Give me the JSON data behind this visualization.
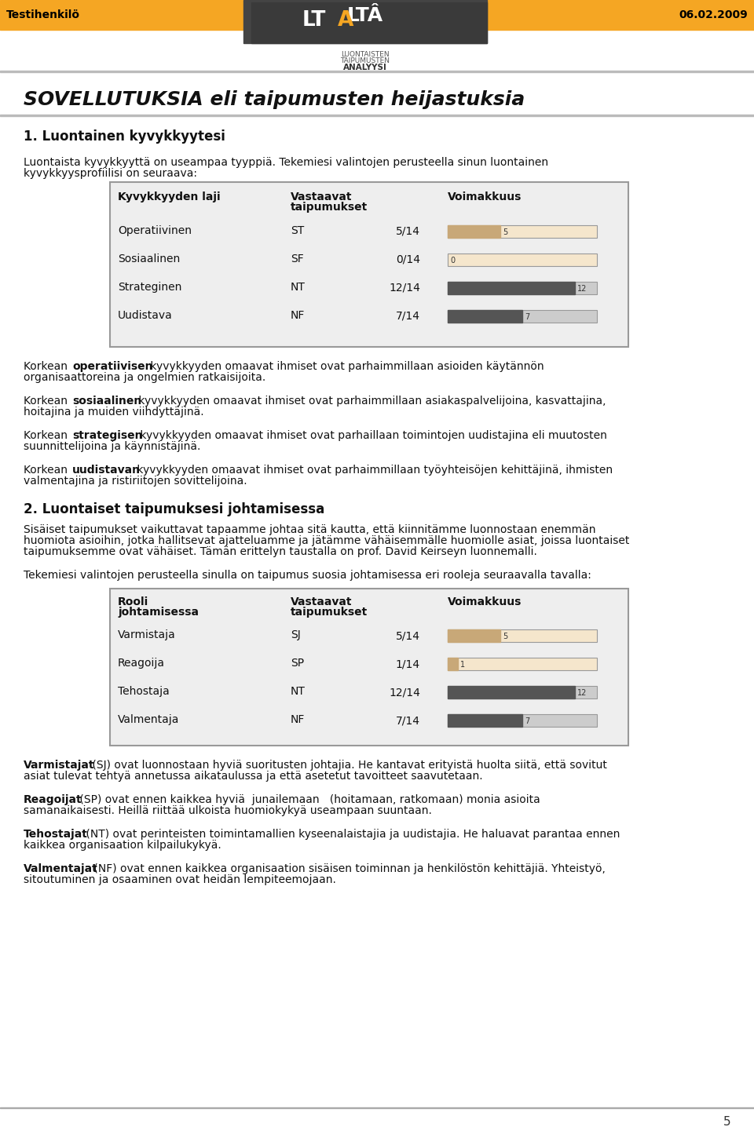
{
  "page_bg": "#ffffff",
  "header_bg": "#f5a623",
  "header_text_left": "Testihenkilö",
  "header_text_right": "06.02.2009",
  "header_text_color": "#000000",
  "header_font_size": 11,
  "logo_text_line1": "LUONTAISTEN",
  "logo_text_line2": "TAIPUMUSTEN",
  "logo_text_line3": "ANALYYSI",
  "main_title": "SOVELLUTUKSIA eli taipumusten heijastuksia",
  "section1_heading": "1. Luontainen kyvykkyytesi",
  "intro_text": "Luontaista kyvykkyyttä on useampaa tyyppiä. Tekemiesi valintojen perusteella sinun luontainen\nkyvykkyysprofiilisi on seuraava:",
  "table1_headers": [
    "Kyvykkyyden laji",
    "Vastaavat\ntaipumukset",
    "Voimakkuus"
  ],
  "table1_rows": [
    [
      "Operatiivinen",
      "ST",
      "5/14",
      5,
      14,
      "bar_orange"
    ],
    [
      "Sosiaalinen",
      "SF",
      "0/14",
      0,
      14,
      "bar_orange"
    ],
    [
      "Strateginen",
      "NT",
      "12/14",
      12,
      14,
      "bar_dark"
    ],
    [
      "Uudistava",
      "NF",
      "7/14",
      7,
      14,
      "bar_dark"
    ]
  ],
  "bar_orange_filled": "#c8a878",
  "bar_orange_empty": "#f5e6cc",
  "bar_dark_filled": "#555555",
  "bar_dark_empty": "#cccccc",
  "bar_border": "#999999",
  "para1": [
    "Korkean ",
    "operatiivisen",
    " kyvykkyyden omaavat ihmiset ovat parhaimmillaan asioiden käytännön\norganisaattoreina ja ongelmien ratkaisijoita."
  ],
  "para2": [
    "Korkean ",
    "sosiaalinen",
    " kyvykkyyden omaavat ihmiset ovat parhaimmillaan asiakaspalvelijoina, kasvattajina,\nhoitajina ja muiden viihdyttäjinä."
  ],
  "para3": [
    "Korkean ",
    "strategisen",
    " kyvykkyyden omaavat ihmiset ovat parhaillaan toimintojen uudistajina eli muutosten\nsuunnittelijoina ja käynnistäjinä."
  ],
  "para4": [
    "Korkean ",
    "uudistavan",
    " kyvykkyyden omaavat ihmiset ovat parhaimmillaan työyhteisöjen kehittäjinä, ihmisten\nvalmentajina ja ristiriitojen sovittelijoina."
  ],
  "section2_heading": "2. Luontaiset taipumuksesi johtamisessa",
  "section2_intro": "Sisäiset taipumukset vaikuttavat tapaamme johtaa sitä kautta, että kiinnitämme luonnostaan enemmän\nhuomiota asioihin, jotka hallitsevat ajatteluamme ja jätämme vähäisemmälle huomiolle asiat, joissa luontaiset\ntaipumuksemme ovat vähäiset. Tämän erittelyn taustalla on prof. David Keirseyn luonnemalli.",
  "section2_outro": "Tekemiesi valintojen perusteella sinulla on taipumus suosia johtamisessa eri rooleja seuraavalla tavalla:",
  "table2_headers": [
    "Rooli\njohtamisessa",
    "Vastaavat\ntaipumukset",
    "Voimakkuus"
  ],
  "table2_rows": [
    [
      "Varmistaja",
      "SJ",
      "5/14",
      5,
      14,
      "bar_orange"
    ],
    [
      "Reagoija",
      "SP",
      "1/14",
      1,
      14,
      "bar_orange"
    ],
    [
      "Tehostaja",
      "NT",
      "12/14",
      12,
      14,
      "bar_dark"
    ],
    [
      "Valmentaja",
      "NF",
      "7/14",
      7,
      14,
      "bar_dark"
    ]
  ],
  "para5_label": "Varmistajat",
  "para5": " (SJ) ovat luonnostaan hyviä suoritusten johtajia. He kantavat erityistä huolta siitä, että sovitut\nasiat tulevat tehtyä annetussa aikataulussa ja että asetetut tavoitteet saavutetaan.",
  "para6_label": "Reagoijat",
  "para6": " (SP) ovat ennen kaikkea hyviä  junailemaan   (hoitamaan, ratkomaan) monia asioita\nsamanaikaisesti. Heillä riittää ulkoista huomiokykyä useampaan suuntaan.",
  "para7_label": "Tehostajat",
  "para7": " (NT) ovat perinteisten toimintamallien kyseenalaistajia ja uudistajia. He haluavat parantaa ennen\nkaikkea organisaation kilpailukykyä.",
  "para8_label": "Valmentajat",
  "para8": " (NF) ovat ennen kaikkea organisaation sisäisen toiminnan ja henkilöstön kehittäjiä. Yhteistyö,\nsitoutuminen ja osaaminen ovat heidän lempiteemojaan.",
  "page_number": "5",
  "footer_line_color": "#cccccc",
  "table_border_color": "#999999",
  "table_bg": "#eeeeee"
}
